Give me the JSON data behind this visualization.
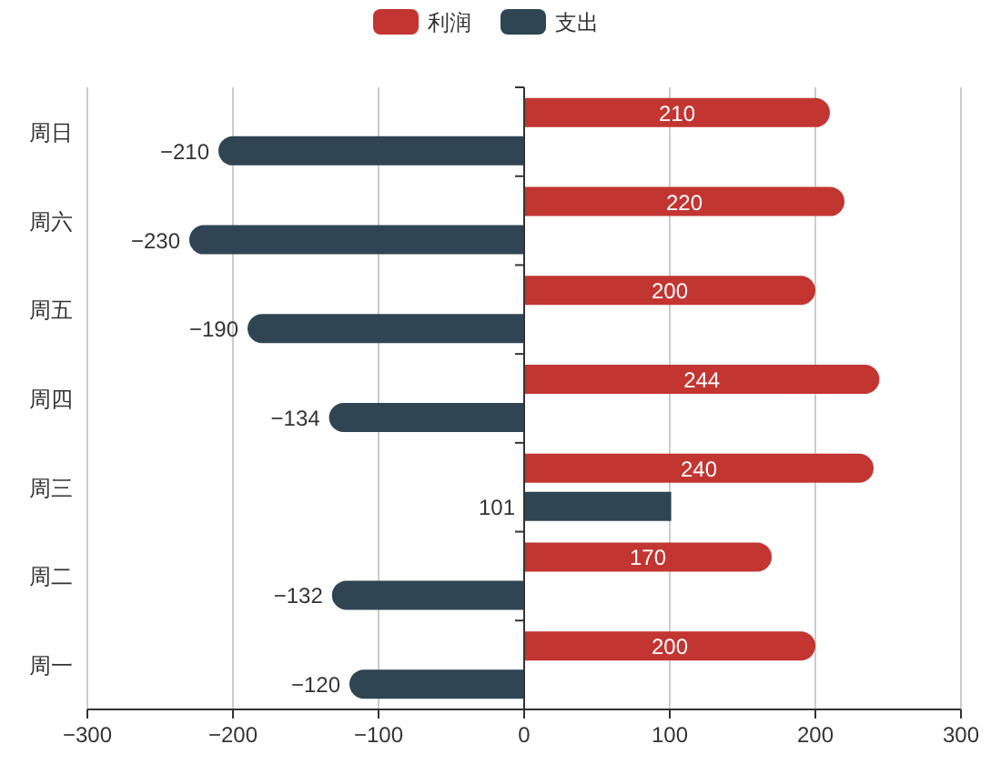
{
  "chart_data": {
    "type": "bar",
    "orientation": "horizontal",
    "categories": [
      "周日",
      "周六",
      "周五",
      "周四",
      "周三",
      "周二",
      "周一"
    ],
    "series": [
      {
        "name": "利润",
        "color": "#c23531",
        "values": [
          210,
          220,
          200,
          244,
          240,
          170,
          200
        ],
        "value_labels": [
          "210",
          "220",
          "200",
          "244",
          "240",
          "170",
          "200"
        ]
      },
      {
        "name": "支出",
        "color": "#2f4554",
        "values": [
          -210,
          -230,
          -190,
          -134,
          101,
          -132,
          -120
        ],
        "value_labels": [
          "−210",
          "−230",
          "−190",
          "−134",
          "101",
          "−132",
          "−120"
        ]
      }
    ],
    "xlim": [
      -300,
      300
    ],
    "xticks": [
      {
        "value": -300,
        "label": "−300"
      },
      {
        "value": -200,
        "label": "−200"
      },
      {
        "value": -100,
        "label": "−100"
      },
      0,
      100,
      200,
      300
    ],
    "grid": "x",
    "legend": "top"
  }
}
